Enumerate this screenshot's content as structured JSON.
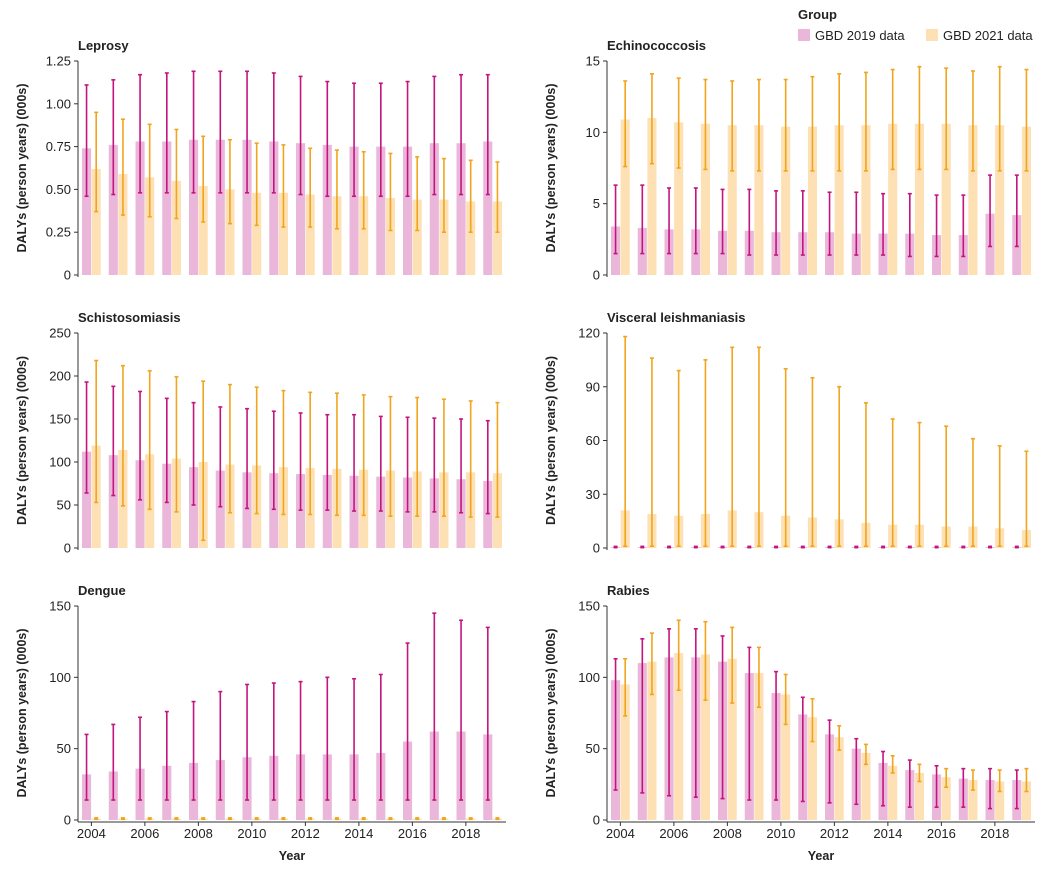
{
  "legend": {
    "title": "Group",
    "items": [
      {
        "label": "GBD 2019 data",
        "color": "#eab7db"
      },
      {
        "label": "GBD 2021 data",
        "color": "#fde0b4"
      }
    ]
  },
  "colors": {
    "gbd2019_bar": "#eab7db",
    "gbd2019_error": "#c4157f",
    "gbd2021_bar": "#fde0b4",
    "gbd2021_error": "#f0a51e"
  },
  "x_axis": {
    "label": "Year",
    "ticks": [
      "2004",
      "2006",
      "2008",
      "2010",
      "2012",
      "2014",
      "2016",
      "2018"
    ]
  },
  "chart_data": [
    {
      "type": "bar",
      "title": "Leprosy",
      "ylabel": "DALYs (person years) (000s)",
      "xlabel": "",
      "ylim": [
        0,
        1.25
      ],
      "yticks": [
        "0",
        "0.25",
        "0.50",
        "0.75",
        "1.00",
        "1.25"
      ],
      "categories": [
        "2004",
        "2005",
        "2006",
        "2007",
        "2008",
        "2009",
        "2010",
        "2011",
        "2012",
        "2013",
        "2014",
        "2015",
        "2016",
        "2017",
        "2018",
        "2019"
      ],
      "series": [
        {
          "name": "GBD 2019 data",
          "values": [
            0.74,
            0.76,
            0.78,
            0.78,
            0.79,
            0.79,
            0.79,
            0.78,
            0.77,
            0.76,
            0.75,
            0.75,
            0.75,
            0.77,
            0.77,
            0.78
          ],
          "lower": [
            0.46,
            0.47,
            0.48,
            0.48,
            0.48,
            0.48,
            0.48,
            0.48,
            0.47,
            0.46,
            0.46,
            0.46,
            0.46,
            0.47,
            0.47,
            0.47
          ],
          "upper": [
            1.11,
            1.14,
            1.17,
            1.18,
            1.19,
            1.19,
            1.19,
            1.18,
            1.16,
            1.13,
            1.12,
            1.12,
            1.13,
            1.16,
            1.17,
            1.17
          ]
        },
        {
          "name": "GBD 2021 data",
          "values": [
            0.62,
            0.59,
            0.57,
            0.55,
            0.52,
            0.5,
            0.48,
            0.48,
            0.47,
            0.46,
            0.46,
            0.45,
            0.44,
            0.44,
            0.43,
            0.43
          ],
          "lower": [
            0.37,
            0.35,
            0.34,
            0.33,
            0.31,
            0.3,
            0.29,
            0.28,
            0.28,
            0.27,
            0.27,
            0.26,
            0.26,
            0.25,
            0.25,
            0.25
          ],
          "upper": [
            0.95,
            0.91,
            0.88,
            0.85,
            0.81,
            0.79,
            0.77,
            0.76,
            0.74,
            0.73,
            0.72,
            0.71,
            0.69,
            0.68,
            0.67,
            0.66
          ]
        }
      ]
    },
    {
      "type": "bar",
      "title": "Echinococcosis",
      "ylabel": "DALYs (person years) (000s)",
      "xlabel": "",
      "ylim": [
        0,
        15
      ],
      "yticks": [
        "0",
        "5",
        "10",
        "15"
      ],
      "categories": [
        "2004",
        "2005",
        "2006",
        "2007",
        "2008",
        "2009",
        "2010",
        "2011",
        "2012",
        "2013",
        "2014",
        "2015",
        "2016",
        "2017",
        "2018",
        "2019"
      ],
      "series": [
        {
          "name": "GBD 2019 data",
          "values": [
            3.4,
            3.3,
            3.2,
            3.2,
            3.1,
            3.1,
            3.0,
            3.0,
            3.0,
            2.9,
            2.9,
            2.9,
            2.8,
            2.8,
            4.3,
            4.2
          ],
          "lower": [
            1.5,
            1.5,
            1.5,
            1.5,
            1.5,
            1.4,
            1.4,
            1.4,
            1.4,
            1.4,
            1.4,
            1.3,
            1.3,
            1.3,
            2.0,
            2.0
          ],
          "upper": [
            6.3,
            6.3,
            6.1,
            6.1,
            6.0,
            6.0,
            5.9,
            5.9,
            5.8,
            5.8,
            5.7,
            5.7,
            5.6,
            5.6,
            7.0,
            7.0
          ]
        },
        {
          "name": "GBD 2021 data",
          "values": [
            10.9,
            11.0,
            10.7,
            10.6,
            10.5,
            10.5,
            10.4,
            10.4,
            10.5,
            10.5,
            10.6,
            10.6,
            10.6,
            10.5,
            10.5,
            10.4
          ],
          "lower": [
            7.6,
            7.8,
            7.5,
            7.4,
            7.3,
            7.3,
            7.3,
            7.3,
            7.3,
            7.3,
            7.4,
            7.4,
            7.4,
            7.3,
            7.3,
            7.3
          ],
          "upper": [
            13.6,
            14.1,
            13.8,
            13.7,
            13.6,
            13.7,
            13.7,
            13.9,
            14.1,
            14.2,
            14.4,
            14.6,
            14.5,
            14.3,
            14.6,
            14.4
          ]
        }
      ]
    },
    {
      "type": "bar",
      "title": "Schistosomiasis",
      "ylabel": "DALYs (person years) (000s)",
      "xlabel": "",
      "ylim": [
        0,
        250
      ],
      "yticks": [
        "0",
        "50",
        "100",
        "150",
        "200",
        "250"
      ],
      "categories": [
        "2004",
        "2005",
        "2006",
        "2007",
        "2008",
        "2009",
        "2010",
        "2011",
        "2012",
        "2013",
        "2014",
        "2015",
        "2016",
        "2017",
        "2018",
        "2019"
      ],
      "series": [
        {
          "name": "GBD 2019 data",
          "values": [
            112,
            108,
            102,
            98,
            94,
            90,
            88,
            87,
            86,
            85,
            84,
            83,
            82,
            81,
            80,
            78
          ],
          "lower": [
            64,
            61,
            56,
            53,
            50,
            48,
            46,
            45,
            44,
            44,
            43,
            43,
            42,
            42,
            41,
            40
          ],
          "upper": [
            193,
            188,
            182,
            174,
            169,
            164,
            162,
            159,
            157,
            155,
            155,
            153,
            152,
            151,
            150,
            148
          ]
        },
        {
          "name": "GBD 2021 data",
          "values": [
            119,
            114,
            109,
            104,
            100,
            97,
            96,
            94,
            93,
            92,
            91,
            90,
            89,
            88,
            88,
            87
          ],
          "lower": [
            53,
            49,
            45,
            42,
            9,
            41,
            40,
            39,
            39,
            38,
            38,
            37,
            37,
            37,
            36,
            36
          ],
          "upper": [
            218,
            212,
            206,
            199,
            194,
            190,
            187,
            183,
            181,
            180,
            178,
            176,
            175,
            173,
            171,
            169
          ]
        }
      ]
    },
    {
      "type": "bar",
      "title": "Visceral leishmaniasis",
      "ylabel": "DALYs (person years) (000s)",
      "xlabel": "",
      "ylim": [
        0,
        120
      ],
      "yticks": [
        "0",
        "30",
        "60",
        "90",
        "120"
      ],
      "categories": [
        "2004",
        "2005",
        "2006",
        "2007",
        "2008",
        "2009",
        "2010",
        "2011",
        "2012",
        "2013",
        "2014",
        "2015",
        "2016",
        "2017",
        "2018",
        "2019"
      ],
      "series": [
        {
          "name": "GBD 2019 data",
          "values": [
            0.5,
            0.5,
            0.5,
            0.5,
            0.5,
            0.5,
            0.5,
            0.5,
            0.5,
            0.5,
            0.5,
            0.5,
            0.5,
            0.5,
            0.5,
            0.5
          ],
          "lower": [
            0.2,
            0.2,
            0.2,
            0.2,
            0.2,
            0.2,
            0.2,
            0.2,
            0.2,
            0.2,
            0.2,
            0.2,
            0.2,
            0.2,
            0.2,
            0.2
          ],
          "upper": [
            0.9,
            0.9,
            0.9,
            0.9,
            0.9,
            0.9,
            0.9,
            0.9,
            0.9,
            0.9,
            0.9,
            0.9,
            0.9,
            0.9,
            0.9,
            0.9
          ]
        },
        {
          "name": "GBD 2021 data",
          "values": [
            21,
            19,
            18,
            19,
            21,
            20,
            18,
            17,
            16,
            14,
            13,
            13,
            12,
            12,
            11,
            10
          ],
          "lower": [
            1,
            1,
            1,
            1,
            1,
            1,
            1,
            1,
            1,
            1,
            1,
            1,
            1,
            1,
            1,
            1
          ],
          "upper": [
            118,
            106,
            99,
            105,
            112,
            112,
            100,
            95,
            90,
            81,
            72,
            70,
            68,
            61,
            57,
            54
          ]
        }
      ]
    },
    {
      "type": "bar",
      "title": "Dengue",
      "ylabel": "DALYs (person years) (000s)",
      "xlabel": "Year",
      "ylim": [
        0,
        150
      ],
      "yticks": [
        "0",
        "50",
        "100",
        "150"
      ],
      "categories": [
        "2004",
        "2005",
        "2006",
        "2007",
        "2008",
        "2009",
        "2010",
        "2011",
        "2012",
        "2013",
        "2014",
        "2015",
        "2016",
        "2017",
        "2018",
        "2019"
      ],
      "series": [
        {
          "name": "GBD 2019 data",
          "values": [
            32,
            34,
            36,
            38,
            40,
            42,
            44,
            45,
            46,
            46,
            46,
            47,
            55,
            62,
            62,
            60
          ],
          "lower": [
            14,
            14,
            14,
            14,
            14,
            14,
            14,
            14,
            14,
            14,
            14,
            14,
            14,
            14,
            14,
            14
          ],
          "upper": [
            60,
            67,
            72,
            76,
            83,
            90,
            95,
            96,
            97,
            100,
            99,
            102,
            124,
            145,
            140,
            135
          ]
        },
        {
          "name": "GBD 2021 data",
          "values": [
            1,
            1,
            1,
            1,
            1,
            1,
            1,
            1,
            1,
            1,
            1,
            1,
            1,
            1,
            1,
            1
          ],
          "lower": [
            0.5,
            0.5,
            0.5,
            0.5,
            0.5,
            0.5,
            0.5,
            0.5,
            0.5,
            0.5,
            0.5,
            0.5,
            0.5,
            0.5,
            0.5,
            0.5
          ],
          "upper": [
            1.5,
            1.5,
            1.5,
            1.5,
            1.5,
            1.5,
            1.5,
            1.5,
            1.5,
            1.5,
            1.5,
            1.5,
            1.5,
            1.5,
            1.5,
            1.5
          ]
        }
      ]
    },
    {
      "type": "bar",
      "title": "Rabies",
      "ylabel": "DALYs (person years) (000s)",
      "xlabel": "Year",
      "ylim": [
        0,
        150
      ],
      "yticks": [
        "0",
        "50",
        "100",
        "150"
      ],
      "categories": [
        "2004",
        "2005",
        "2006",
        "2007",
        "2008",
        "2009",
        "2010",
        "2011",
        "2012",
        "2013",
        "2014",
        "2015",
        "2016",
        "2017",
        "2018",
        "2019"
      ],
      "series": [
        {
          "name": "GBD 2019 data",
          "values": [
            98,
            110,
            114,
            114,
            111,
            103,
            89,
            74,
            60,
            50,
            40,
            35,
            32,
            29,
            28,
            28
          ],
          "lower": [
            21,
            19,
            17,
            16,
            15,
            14,
            14,
            13,
            12,
            11,
            10,
            9,
            9,
            9,
            8,
            8
          ],
          "upper": [
            113,
            127,
            134,
            134,
            129,
            121,
            104,
            86,
            70,
            57,
            48,
            42,
            38,
            36,
            36,
            35
          ]
        },
        {
          "name": "GBD 2021 data",
          "values": [
            95,
            111,
            117,
            116,
            113,
            103,
            88,
            72,
            58,
            47,
            38,
            33,
            30,
            28,
            27,
            27
          ],
          "lower": [
            73,
            88,
            91,
            84,
            82,
            79,
            67,
            55,
            49,
            39,
            33,
            27,
            23,
            21,
            20,
            20
          ],
          "upper": [
            113,
            131,
            140,
            139,
            135,
            121,
            102,
            85,
            66,
            53,
            45,
            39,
            36,
            35,
            35,
            36
          ]
        }
      ]
    }
  ]
}
